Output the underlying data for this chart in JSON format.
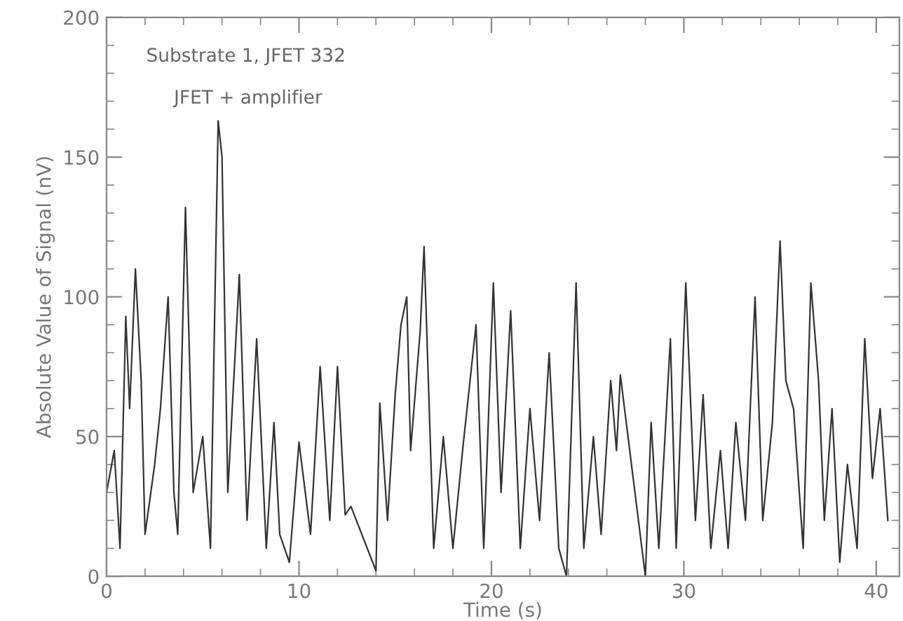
{
  "chart_data": {
    "type": "line",
    "xlabel": "Time (s)",
    "ylabel": "Absolute Value of Signal (nV)",
    "annotations": [
      "Substrate 1, JFET 332",
      "JFET + amplifier"
    ],
    "x": [
      0,
      0.4,
      0.7,
      1.0,
      1.2,
      1.5,
      1.8,
      2.0,
      2.5,
      2.8,
      3.2,
      3.5,
      3.7,
      4.1,
      4.5,
      5.0,
      5.4,
      5.8,
      6.0,
      6.3,
      6.9,
      7.3,
      7.8,
      8.3,
      8.7,
      9.0,
      9.5,
      10.0,
      10.6,
      11.1,
      11.6,
      12.0,
      12.4,
      12.7,
      14.0,
      14.2,
      14.6,
      15.0,
      15.3,
      15.6,
      15.8,
      16.3,
      16.5,
      17.0,
      17.5,
      18.0,
      18.5,
      19.2,
      19.6,
      20.1,
      20.5,
      21.0,
      21.5,
      22.0,
      22.5,
      23.0,
      23.5,
      23.9,
      24.4,
      24.8,
      25.3,
      25.7,
      26.2,
      26.5,
      26.7,
      28.0,
      28.3,
      28.7,
      29.3,
      29.6,
      30.1,
      30.6,
      31.0,
      31.4,
      31.9,
      32.3,
      32.7,
      33.2,
      33.7,
      34.1,
      34.6,
      35.0,
      35.3,
      35.7,
      36.2,
      36.6,
      37.0,
      37.3,
      37.7,
      38.1,
      38.5,
      39.0,
      39.4,
      39.8,
      40.2,
      40.5,
      40.6
    ],
    "series": [
      {
        "color": "#333333",
        "values": [
          30,
          45,
          10,
          93,
          60,
          110,
          70,
          15,
          40,
          60,
          100,
          30,
          15,
          132,
          30,
          50,
          10,
          163,
          150,
          30,
          108,
          20,
          85,
          10,
          55,
          15,
          5,
          48,
          15,
          75,
          20,
          75,
          22,
          25,
          2,
          62,
          20,
          65,
          90,
          100,
          45,
          88,
          118,
          10,
          50,
          10,
          45,
          90,
          10,
          105,
          30,
          95,
          10,
          60,
          20,
          80,
          10,
          0,
          105,
          10,
          50,
          15,
          70,
          45,
          72,
          0,
          55,
          10,
          85,
          10,
          105,
          20,
          65,
          10,
          45,
          10,
          55,
          20,
          100,
          20,
          55,
          120,
          70,
          60,
          10,
          105,
          70,
          20,
          60,
          5,
          40,
          10,
          85,
          35,
          60,
          30,
          20
        ]
      }
    ],
    "xlim": [
      0,
      41.2
    ],
    "ylim": [
      0,
      200
    ],
    "xticks": [
      0,
      10,
      20,
      30,
      40
    ],
    "yticks": [
      0,
      50,
      100,
      150,
      200
    ],
    "marker": "none",
    "line_style": "solid",
    "grid": false,
    "legend": false
  }
}
